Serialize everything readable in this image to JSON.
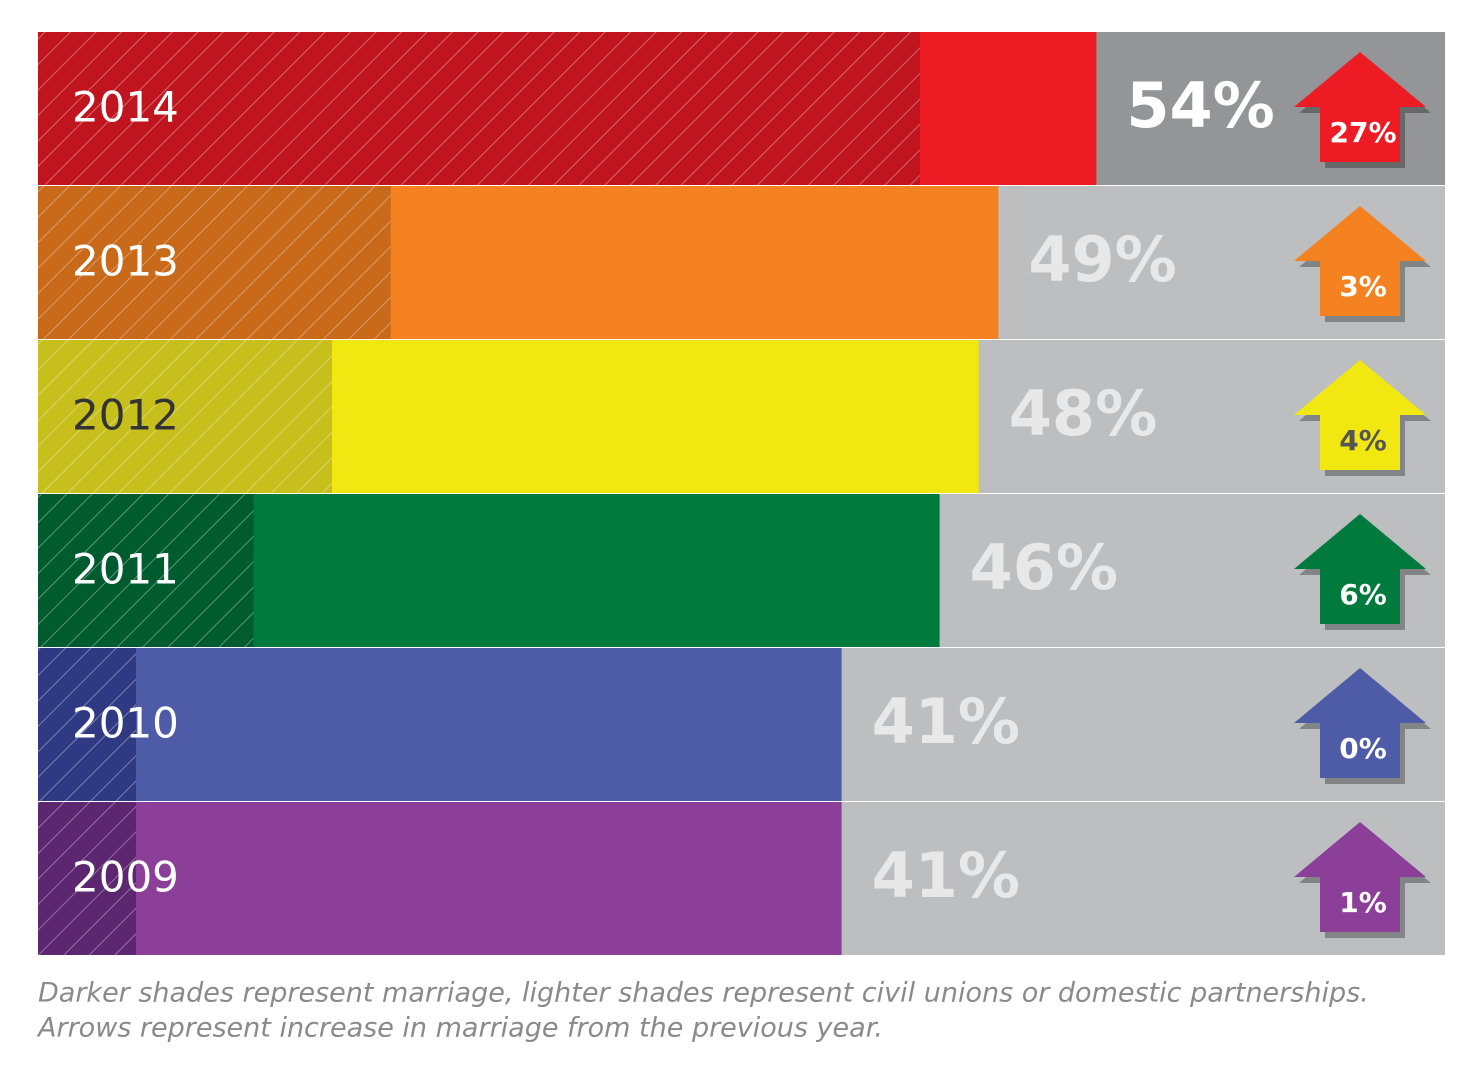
{
  "chart_data": {
    "type": "bar",
    "categories": [
      "2014",
      "2013",
      "2012",
      "2011",
      "2010",
      "2009"
    ],
    "values": [
      54,
      49,
      48,
      46,
      41,
      41
    ],
    "value_labels": [
      "54%",
      "49%",
      "48%",
      "46%",
      "41%",
      "41%"
    ],
    "marriage_values": [
      45,
      18,
      15,
      11,
      5,
      5
    ],
    "increase_values": [
      27,
      3,
      4,
      6,
      0,
      1
    ],
    "increase_labels": [
      "27%",
      "3%",
      "4%",
      "6%",
      "0%",
      "1%"
    ],
    "colors": [
      "#ed1c24",
      "#f58220",
      "#f2e811",
      "#007a3d",
      "#4e5ba6",
      "#8b3f98"
    ],
    "shade_colors": [
      "#c0141e",
      "#c9691a",
      "#c7bf1c",
      "#005c2e",
      "#2f3a82",
      "#5c2670"
    ],
    "notes": [
      "Darker shades represent marriage, lighter shades represent civil unions or domestic partnerships.",
      "Arrows represent increase in marriage from the previous year."
    ]
  }
}
